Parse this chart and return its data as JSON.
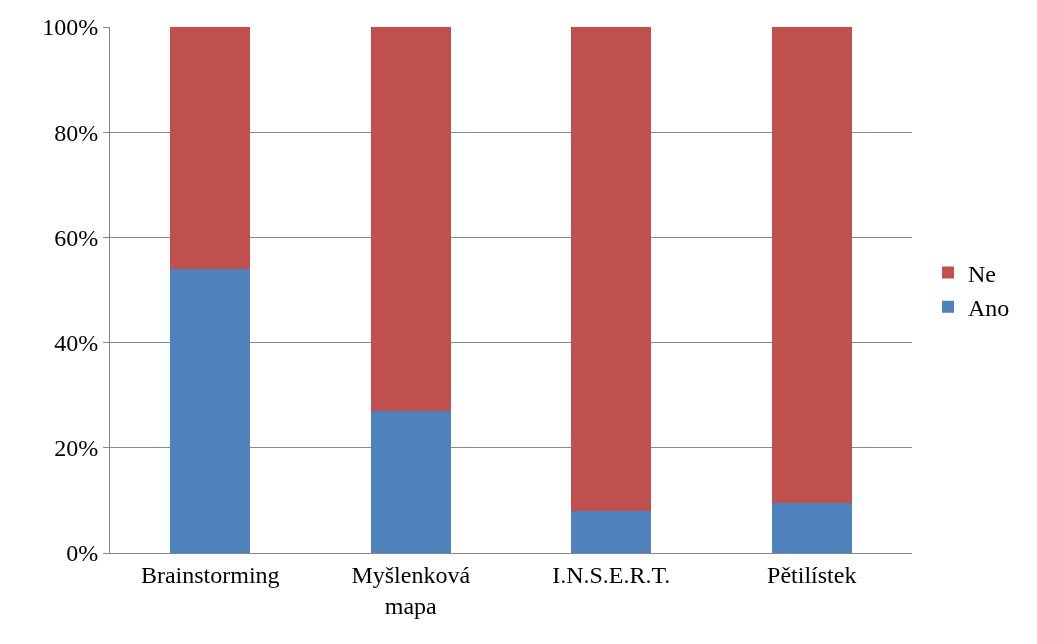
{
  "chart_data": {
    "type": "bar",
    "stacked": true,
    "categories": [
      "Brainstorming",
      "Myšlenková mapa",
      "I.N.S.E.R.T.",
      "Pětilístek"
    ],
    "series": [
      {
        "name": "Ano",
        "color": "#4f81bd",
        "values": [
          54,
          27,
          8,
          9.5
        ]
      },
      {
        "name": "Ne",
        "color": "#c0504d",
        "values": [
          46,
          73,
          92,
          90.5
        ]
      }
    ],
    "ylim": [
      0,
      100
    ],
    "yticks": [
      {
        "value": 0,
        "label": "0%"
      },
      {
        "value": 20,
        "label": "20%"
      },
      {
        "value": 40,
        "label": "40%"
      },
      {
        "value": 60,
        "label": "60%"
      },
      {
        "value": 80,
        "label": "80%"
      },
      {
        "value": 100,
        "label": "100%"
      }
    ],
    "grid": "y",
    "legend": "right"
  }
}
